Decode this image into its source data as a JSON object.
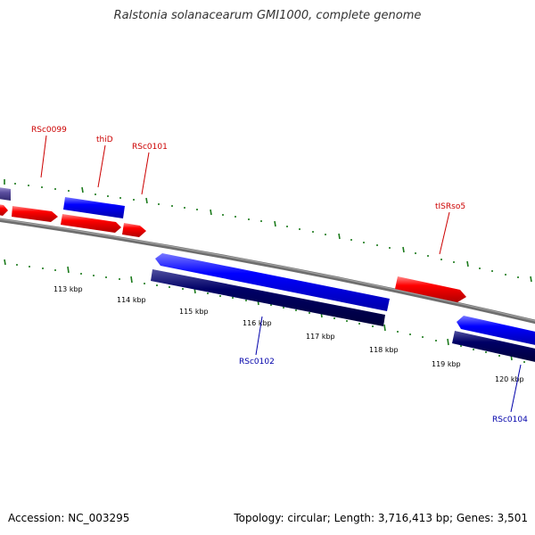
{
  "title": "Ralstonia solanacearum GMI1000, complete genome",
  "footer": {
    "accession": "Accession: NC_003295",
    "summary": "Topology: circular; Length: 3,716,413 bp; Genes: 3,501"
  },
  "colors": {
    "forward_gene": "#ff0000",
    "forward_cds": "#0000ff",
    "reverse_cds": "#000066",
    "partial_gene": "#5a4d9e",
    "backbone": "#808080",
    "tick_marks": "#1b7a1b",
    "label_forward": "#cc0000",
    "label_reverse": "#0000aa"
  },
  "scale_labels": [
    "113 kbp",
    "114 kbp",
    "115 kbp",
    "116 kbp",
    "117 kbp",
    "118 kbp",
    "119 kbp",
    "120 kbp"
  ],
  "gene_labels": {
    "rsc0099": "RSc0099",
    "thid": "thiD",
    "rsc0101": "RSc0101",
    "tisrso5": "tISRso5",
    "rsc0102": "RSc0102",
    "rsc0104": "RSc0104"
  }
}
